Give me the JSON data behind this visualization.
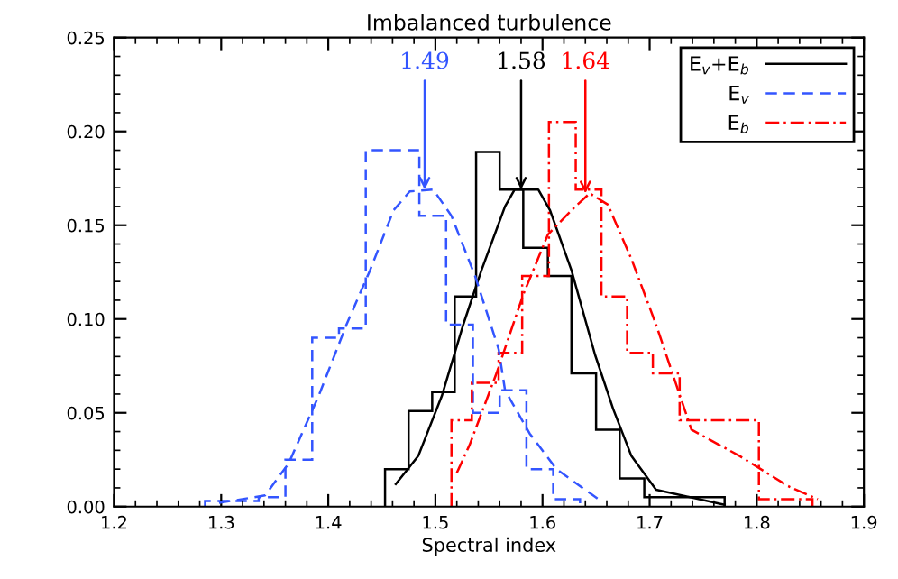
{
  "chart_data": {
    "type": "histogram",
    "title": "Imbalanced turbulence",
    "xlabel": "Spectral index",
    "xlim": [
      1.2,
      1.9
    ],
    "xticks": [
      {
        "value": 1.2,
        "label": "1.2"
      },
      {
        "value": 1.3,
        "label": "1.3"
      },
      {
        "value": 1.4,
        "label": "1.4"
      },
      {
        "value": 1.5,
        "label": "1.5"
      },
      {
        "value": 1.6,
        "label": "1.6"
      },
      {
        "value": 1.7,
        "label": "1.7"
      },
      {
        "value": 1.8,
        "label": "1.8"
      },
      {
        "value": 1.9,
        "label": "1.9"
      }
    ],
    "ylim": [
      0,
      0.25
    ],
    "yticks": [
      {
        "value": 0,
        "label": "0.00"
      },
      {
        "value": 0.05,
        "label": "0.05"
      },
      {
        "value": 0.1,
        "label": "0.10"
      },
      {
        "value": 0.15,
        "label": "0.15"
      },
      {
        "value": 0.2,
        "label": "0.20"
      },
      {
        "value": 0.25,
        "label": "0.25"
      }
    ],
    "grid": false,
    "legend": "top right",
    "series": [
      {
        "color": "#000000",
        "line_style": "solid",
        "bins": [
          1.453,
          1.475,
          1.497,
          1.518,
          1.538,
          1.56,
          1.582,
          1.605,
          1.627,
          1.65,
          1.672,
          1.695,
          1.717,
          1.74,
          1.77
        ],
        "values": [
          0.02,
          0.051,
          0.061,
          0.112,
          0.189,
          0.169,
          0.138,
          0.123,
          0.071,
          0.041,
          0.015,
          0.005,
          0.005,
          0.005
        ]
      },
      {
        "color": "#3355ff",
        "line_style": "dashed",
        "bins": [
          1.285,
          1.31,
          1.335,
          1.36,
          1.385,
          1.41,
          1.435,
          1.46,
          1.485,
          1.51,
          1.535,
          1.56,
          1.585,
          1.61,
          1.635
        ],
        "values": [
          0.003,
          0.003,
          0.005,
          0.025,
          0.09,
          0.095,
          0.19,
          0.19,
          0.155,
          0.097,
          0.05,
          0.062,
          0.02,
          0.004
        ]
      },
      {
        "color": "#ff0000",
        "line_style": "dashdot",
        "bins": [
          1.515,
          1.534,
          1.559,
          1.581,
          1.606,
          1.631,
          1.655,
          1.679,
          1.703,
          1.728,
          1.802,
          1.852
        ],
        "values": [
          0.046,
          0.066,
          0.082,
          0.123,
          0.205,
          0.169,
          0.112,
          0.082,
          0.071,
          0.046,
          0.004
        ]
      },
      {
        "type": "line",
        "name": "E$_{v}$+E$_{b}$",
        "color": "#000000",
        "line_style": "solid",
        "x": [
          1.463,
          1.484,
          1.506,
          1.526,
          1.543,
          1.565,
          1.574,
          1.596,
          1.607,
          1.627,
          1.649,
          1.666,
          1.683,
          1.706,
          1.77
        ],
        "values": [
          0.012,
          0.027,
          0.059,
          0.097,
          0.126,
          0.16,
          0.169,
          0.169,
          0.158,
          0.126,
          0.081,
          0.052,
          0.027,
          0.009,
          0.001
        ]
      },
      {
        "type": "line",
        "name": "E$_{v}$",
        "color": "#3355ff",
        "line_style": "dashed",
        "x": [
          1.298,
          1.341,
          1.363,
          1.391,
          1.417,
          1.439,
          1.461,
          1.476,
          1.498,
          1.515,
          1.537,
          1.559,
          1.565,
          1.588,
          1.613,
          1.652
        ],
        "values": [
          0.002,
          0.006,
          0.023,
          0.059,
          0.097,
          0.126,
          0.158,
          0.168,
          0.169,
          0.155,
          0.123,
          0.084,
          0.062,
          0.039,
          0.02,
          0.004
        ]
      },
      {
        "type": "line",
        "name": "E$_{b}$",
        "color": "#ff0000",
        "line_style": "dashdot",
        "x": [
          1.52,
          1.532,
          1.557,
          1.582,
          1.605,
          1.627,
          1.644,
          1.661,
          1.683,
          1.706,
          1.739,
          1.784,
          1.829,
          1.857
        ],
        "values": [
          0.018,
          0.033,
          0.071,
          0.113,
          0.145,
          0.158,
          0.167,
          0.161,
          0.132,
          0.097,
          0.041,
          0.027,
          0.011,
          0.004
        ]
      }
    ],
    "annotations": [
      {
        "text": "1.49",
        "x": 1.49,
        "y": 0.169
      },
      {
        "text": "1.58",
        "x": 1.58,
        "y": 0.169
      },
      {
        "text": "1.64",
        "x": 1.64,
        "y": 0.167
      }
    ]
  }
}
